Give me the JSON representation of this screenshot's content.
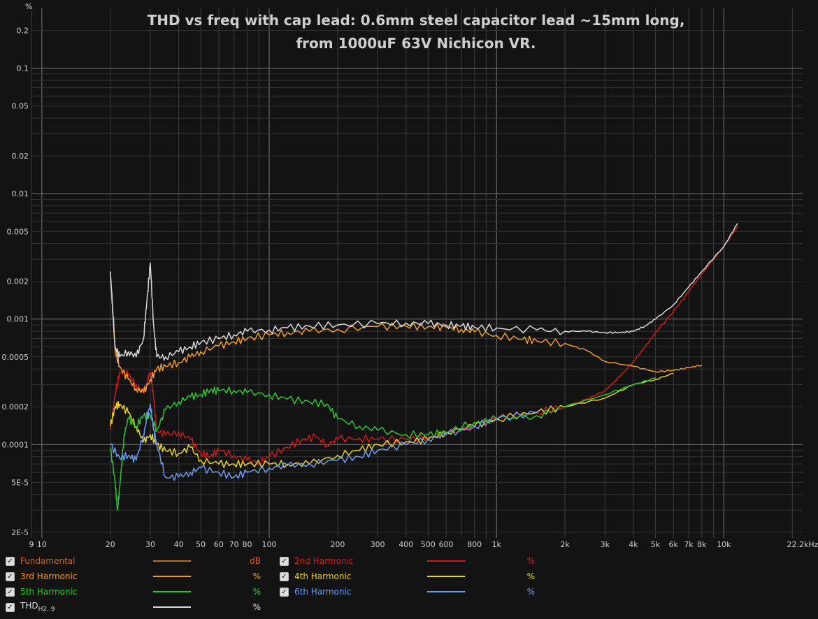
{
  "chart_data": {
    "type": "line",
    "title_line1": "THD vs freq with cap lead: 0.6mm steel capacitor lead ~15mm long,",
    "title_line2": "from 1000uF 63V Nichicon VR.",
    "y_unit_label": "%",
    "x_scale": "log",
    "y_scale": "log",
    "xlim": [
      9,
      22200
    ],
    "ylim": [
      1.8e-05,
      0.3
    ],
    "x_tick_labels": [
      {
        "v": 9,
        "t": "9"
      },
      {
        "v": 10,
        "t": "10"
      },
      {
        "v": 20,
        "t": "20"
      },
      {
        "v": 30,
        "t": "30"
      },
      {
        "v": 40,
        "t": "40"
      },
      {
        "v": 50,
        "t": "50"
      },
      {
        "v": 60,
        "t": "60"
      },
      {
        "v": 70,
        "t": "70"
      },
      {
        "v": 80,
        "t": "80"
      },
      {
        "v": 100,
        "t": "100"
      },
      {
        "v": 200,
        "t": "200"
      },
      {
        "v": 300,
        "t": "300"
      },
      {
        "v": 400,
        "t": "400"
      },
      {
        "v": 500,
        "t": "500"
      },
      {
        "v": 600,
        "t": "600"
      },
      {
        "v": 800,
        "t": "800"
      },
      {
        "v": 1000,
        "t": "1k"
      },
      {
        "v": 2000,
        "t": "2k"
      },
      {
        "v": 3000,
        "t": "3k"
      },
      {
        "v": 4000,
        "t": "4k"
      },
      {
        "v": 5000,
        "t": "5k"
      },
      {
        "v": 6000,
        "t": "6k"
      },
      {
        "v": 7000,
        "t": "7k"
      },
      {
        "v": 8000,
        "t": "8k"
      },
      {
        "v": 10000,
        "t": "10k"
      },
      {
        "v": 22200,
        "t": "22.2kHz"
      }
    ],
    "y_tick_labels": [
      {
        "v": 0.2,
        "t": "0.2"
      },
      {
        "v": 0.1,
        "t": "0.1"
      },
      {
        "v": 0.05,
        "t": "0.05"
      },
      {
        "v": 0.02,
        "t": "0.02"
      },
      {
        "v": 0.01,
        "t": "0.01"
      },
      {
        "v": 0.005,
        "t": "0.005"
      },
      {
        "v": 0.002,
        "t": "0.002"
      },
      {
        "v": 0.001,
        "t": "0.001"
      },
      {
        "v": 0.0005,
        "t": "0.0005"
      },
      {
        "v": 0.0002,
        "t": "0.0002"
      },
      {
        "v": 0.0001,
        "t": "0.0001"
      },
      {
        "v": 5e-05,
        "t": "5E-5"
      },
      {
        "v": 2e-05,
        "t": "2E-5"
      }
    ],
    "major_y_gridlines": [
      0.1,
      0.01,
      0.001,
      0.0001
    ],
    "series": [
      {
        "name": "2nd Harmonic",
        "color": "#d01818",
        "x": [
          20,
          21,
          22,
          24,
          26,
          28,
          29,
          30,
          31,
          32,
          35,
          40,
          45,
          50,
          55,
          60,
          70,
          80,
          90,
          100,
          120,
          140,
          160,
          180,
          200,
          250,
          300,
          400,
          500,
          600,
          800,
          1000,
          1500,
          2000,
          2500,
          3000,
          3500,
          4000,
          4500,
          5000,
          6000,
          7000,
          8000,
          10000,
          11500
        ],
        "y": [
          0.00013,
          0.00025,
          0.00038,
          0.00036,
          0.0003,
          0.00026,
          0.00031,
          0.00038,
          0.00024,
          0.00013,
          0.00012,
          0.000125,
          0.00011,
          8.5e-05,
          8e-05,
          9e-05,
          8.2e-05,
          7.5e-05,
          7.2e-05,
          8e-05,
          9.5e-05,
          0.00011,
          0.000115,
          0.0001,
          0.00011,
          0.000112,
          0.00011,
          0.00011,
          0.000115,
          0.00012,
          0.00014,
          0.00016,
          0.00018,
          0.0002,
          0.00023,
          0.00027,
          0.00035,
          0.00046,
          0.0006,
          0.00078,
          0.00115,
          0.00165,
          0.0023,
          0.0038,
          0.0055
        ]
      },
      {
        "name": "3rd Harmonic",
        "color": "#f09a28",
        "x": [
          20,
          21,
          22,
          24,
          26,
          28,
          30,
          32,
          35,
          40,
          45,
          50,
          60,
          70,
          80,
          100,
          120,
          150,
          200,
          300,
          400,
          500,
          600,
          700,
          800,
          1000,
          1300,
          1500,
          2000,
          2500,
          3000,
          4000,
          5000,
          6000,
          7000,
          8000
        ],
        "y": [
          0.0024,
          0.00055,
          0.00042,
          0.00033,
          0.00028,
          0.00026,
          0.00033,
          0.0004,
          0.00042,
          0.00045,
          0.0005,
          0.00055,
          0.00061,
          0.00066,
          0.0007,
          0.00075,
          0.00078,
          0.0008,
          0.00083,
          0.00087,
          0.00088,
          0.00087,
          0.00086,
          0.00083,
          0.00079,
          0.00074,
          0.00069,
          0.00067,
          0.00064,
          0.00056,
          0.00046,
          0.00042,
          0.00038,
          0.00039,
          0.00041,
          0.00043
        ]
      },
      {
        "name": "4th Harmonic",
        "color": "#e8d220",
        "x": [
          20,
          21,
          22,
          24,
          26,
          28,
          30,
          32,
          35,
          40,
          45,
          50,
          60,
          70,
          80,
          100,
          120,
          150,
          200,
          250,
          300,
          400,
          500,
          600,
          800,
          1000,
          1500,
          2000,
          3000,
          4000,
          5000,
          6000
        ],
        "y": [
          0.00014,
          0.0002,
          0.00021,
          0.00018,
          0.00014,
          0.000105,
          0.00012,
          0.0001,
          9e-05,
          8.5e-05,
          9.5e-05,
          7.5e-05,
          7e-05,
          7e-05,
          7e-05,
          7e-05,
          7e-05,
          7e-05,
          8.2e-05,
          9e-05,
          0.0001,
          0.000105,
          0.00011,
          0.000125,
          0.00014,
          0.00016,
          0.00018,
          0.0002,
          0.000235,
          0.0003,
          0.00033,
          0.00037
        ]
      },
      {
        "name": "5th Harmonic",
        "color": "#28c828",
        "x": [
          20,
          21,
          21.5,
          22,
          23,
          24,
          26,
          28,
          30,
          32,
          35,
          40,
          45,
          50,
          55,
          60,
          70,
          80,
          100,
          120,
          150,
          180,
          200,
          250,
          300,
          400,
          500,
          600,
          800,
          1000,
          1500,
          2000,
          3000,
          4000,
          5000
        ],
        "y": [
          9.5e-05,
          5e-05,
          3e-05,
          4.5e-05,
          0.00012,
          0.00016,
          0.00014,
          0.00017,
          0.00017,
          0.00013,
          0.00019,
          0.00022,
          0.00024,
          0.00025,
          0.00027,
          0.00027,
          0.00027,
          0.00026,
          0.00025,
          0.00023,
          0.00022,
          0.00021,
          0.00016,
          0.00014,
          0.00013,
          0.00012,
          0.00012,
          0.000125,
          0.00015,
          0.00016,
          0.00017,
          0.0002,
          0.00025,
          0.0003,
          0.00034
        ]
      },
      {
        "name": "6th Harmonic",
        "color": "#6a9cf0",
        "x": [
          20,
          22,
          24,
          26,
          28,
          29,
          30,
          31,
          32,
          35,
          40,
          45,
          50,
          60,
          70,
          80,
          100,
          120,
          150,
          200,
          250,
          300,
          400,
          500,
          600,
          800,
          1000,
          1500
        ],
        "y": [
          0.0001,
          7.8e-05,
          8.2e-05,
          7.5e-05,
          0.00012,
          0.00016,
          0.00021,
          0.00013,
          0.0001,
          5.5e-05,
          5.5e-05,
          6e-05,
          6.5e-05,
          6e-05,
          5.5e-05,
          6e-05,
          6.5e-05,
          6.8e-05,
          7e-05,
          7.5e-05,
          8e-05,
          9e-05,
          0.0001,
          0.00011,
          0.00012,
          0.00014,
          0.00016,
          0.00018
        ]
      },
      {
        "name": "THD",
        "color": "#d8d8d8",
        "x": [
          20,
          21,
          22,
          24,
          26,
          28,
          29,
          30,
          31,
          32,
          35,
          40,
          45,
          50,
          60,
          70,
          80,
          100,
          120,
          150,
          200,
          300,
          400,
          500,
          600,
          700,
          800,
          1000,
          1500,
          2000,
          2500,
          3000,
          3500,
          4000,
          4500,
          5000,
          6000,
          7000,
          8000,
          10000,
          11500
        ],
        "y": [
          0.0024,
          0.0006,
          0.0005,
          0.00055,
          0.0005,
          0.0007,
          0.0014,
          0.0028,
          0.0009,
          0.0005,
          0.0005,
          0.00055,
          0.0006,
          0.00065,
          0.0007,
          0.00075,
          0.0008,
          0.00082,
          0.00085,
          0.00088,
          0.0009,
          0.00092,
          0.00093,
          0.00092,
          0.0009,
          0.00088,
          0.00086,
          0.00085,
          0.00082,
          0.0008,
          0.0008,
          0.00078,
          0.00078,
          0.0008,
          0.00088,
          0.001,
          0.0013,
          0.0018,
          0.0024,
          0.0038,
          0.0058
        ]
      }
    ]
  },
  "legend": [
    {
      "label": "Fundamental",
      "color": "#c0682a",
      "unit": "dB"
    },
    {
      "label": "2nd Harmonic",
      "color": "#d01818",
      "unit": "%"
    },
    {
      "label": "3rd Harmonic",
      "color": "#f09a28",
      "unit": "%"
    },
    {
      "label": "4th Harmonic",
      "color": "#e8d220",
      "unit": "%"
    },
    {
      "label": "5th Harmonic",
      "color": "#28c828",
      "unit": "%"
    },
    {
      "label": "6th Harmonic",
      "color": "#6a9cf0",
      "unit": "%"
    },
    {
      "label": "THD",
      "label_sub": "H2..9",
      "color": "#d8d8d8",
      "unit": "%"
    }
  ]
}
